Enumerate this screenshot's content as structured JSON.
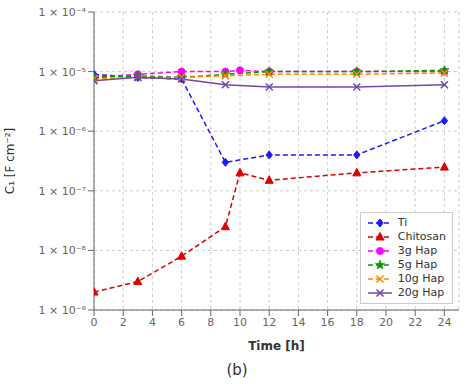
{
  "chart_data": {
    "type": "line",
    "title": "(b)",
    "xlabel": "Time [h]",
    "ylabel": "C₁ [F cm⁻²]",
    "xlim": [
      0,
      25
    ],
    "xticks": [
      0,
      2,
      4,
      6,
      8,
      10,
      12,
      14,
      16,
      18,
      20,
      22,
      24
    ],
    "ylim": [
      1e-09,
      0.0001
    ],
    "yticks": [
      {
        "value": 1e-09,
        "label": "1 × 10⁻⁹"
      },
      {
        "value": 1e-08,
        "label": "1 × 10⁻⁸"
      },
      {
        "value": 1e-07,
        "label": "1 × 10⁻⁷"
      },
      {
        "value": 1e-06,
        "label": "1 × 10⁻⁶"
      },
      {
        "value": 1e-05,
        "label": "1 × 10⁻⁵"
      },
      {
        "value": 0.0001,
        "label": "1 × 10⁻⁴"
      }
    ],
    "log": "y",
    "grid": true,
    "legend": "lower right",
    "series": [
      {
        "name": "Ti",
        "color": "#1a1aff",
        "line_style": "dashed",
        "marker": "diamond",
        "x": [
          0,
          3,
          6,
          9,
          12,
          18,
          24
        ],
        "values": [
          9e-06,
          8e-06,
          7.5e-06,
          3e-07,
          4e-07,
          4e-07,
          1.5e-06
        ]
      },
      {
        "name": "Chitosan",
        "color": "#dd0000",
        "line_style": "dashed",
        "marker": "triangle",
        "x": [
          0,
          3,
          6,
          9,
          10,
          12,
          18,
          24
        ],
        "values": [
          2e-09,
          3e-09,
          8e-09,
          2.5e-08,
          2e-07,
          1.5e-07,
          2e-07,
          2.5e-07
        ]
      },
      {
        "name": "3g Hap",
        "color": "#ff00ff",
        "line_style": "dashed",
        "marker": "circle",
        "x": [
          0,
          3,
          6,
          9,
          10,
          12,
          18,
          24
        ],
        "values": [
          8e-06,
          9e-06,
          1e-05,
          1e-05,
          1.05e-05,
          1e-05,
          1e-05,
          1e-05
        ]
      },
      {
        "name": "5g Hap",
        "color": "#009900",
        "line_style": "dashed",
        "marker": "star",
        "x": [
          0,
          3,
          6,
          9,
          12,
          18,
          24
        ],
        "values": [
          8e-06,
          8.5e-06,
          8e-06,
          9e-06,
          1e-05,
          1e-05,
          1.05e-05
        ]
      },
      {
        "name": "10g Hap",
        "color": "#ff8800",
        "line_style": "dashed",
        "marker": "x",
        "x": [
          0,
          3,
          6,
          9,
          12,
          18,
          24
        ],
        "values": [
          7.5e-06,
          8e-06,
          8e-06,
          8.5e-06,
          9e-06,
          9e-06,
          9.5e-06
        ]
      },
      {
        "name": "20g Hap",
        "color": "#7744aa",
        "line_style": "solid",
        "marker": "x",
        "x": [
          0,
          3,
          6,
          9,
          12,
          18,
          24
        ],
        "values": [
          7e-06,
          8e-06,
          7.5e-06,
          6e-06,
          5.5e-06,
          5.5e-06,
          6e-06
        ]
      }
    ]
  }
}
